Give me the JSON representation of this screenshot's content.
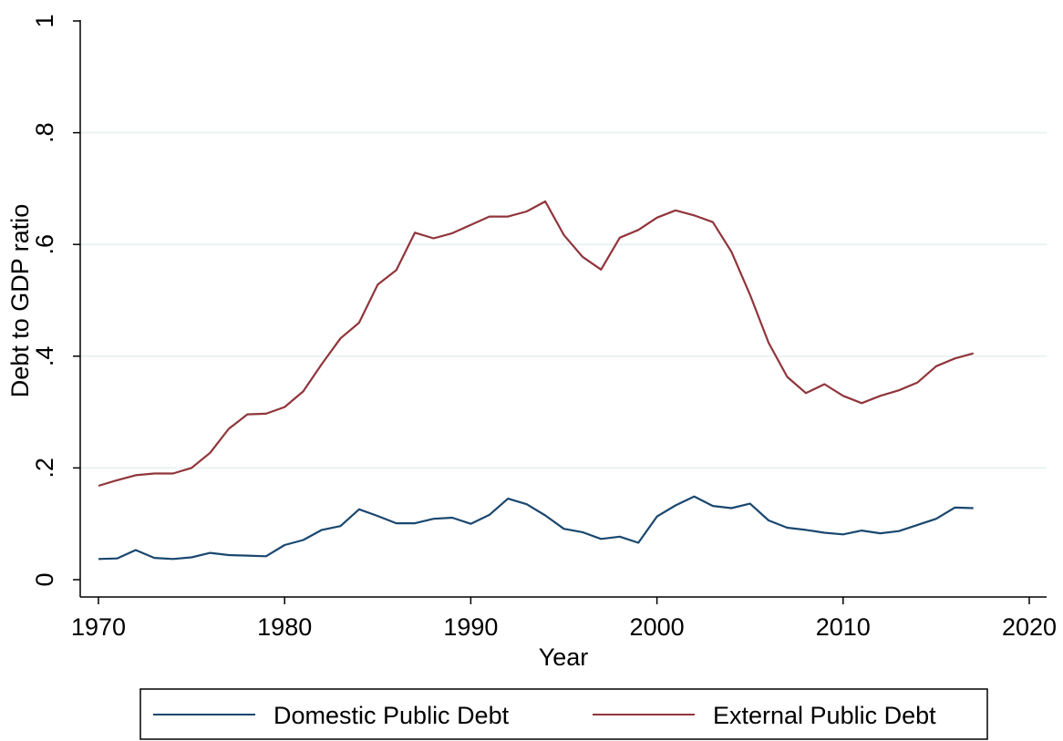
{
  "chart_data": {
    "type": "line",
    "xlabel": "Year",
    "ylabel": "Debt to GDP ratio",
    "xlim": [
      1970,
      2020
    ],
    "ylim": [
      0,
      1
    ],
    "xticks": [
      1970,
      1980,
      1990,
      2000,
      2010,
      2020
    ],
    "yticks": [
      0,
      0.2,
      0.4,
      0.6,
      0.8,
      1
    ],
    "ytick_labels": [
      "0",
      ".2",
      ".4",
      ".6",
      ".8",
      "1"
    ],
    "grid": "horizontal",
    "legend_position": "bottom",
    "x": [
      1970,
      1971,
      1972,
      1973,
      1974,
      1975,
      1976,
      1977,
      1978,
      1979,
      1980,
      1981,
      1982,
      1983,
      1984,
      1985,
      1986,
      1987,
      1988,
      1989,
      1990,
      1991,
      1992,
      1993,
      1994,
      1995,
      1996,
      1997,
      1998,
      1999,
      2000,
      2001,
      2002,
      2003,
      2004,
      2005,
      2006,
      2007,
      2008,
      2009,
      2010,
      2011,
      2012,
      2013,
      2014,
      2015,
      2016,
      2017
    ],
    "series": [
      {
        "name": "Domestic Public Debt",
        "color": "#1a476f",
        "values": [
          0.037,
          0.038,
          0.053,
          0.039,
          0.037,
          0.04,
          0.048,
          0.044,
          0.043,
          0.042,
          0.062,
          0.071,
          0.089,
          0.096,
          0.126,
          0.114,
          0.101,
          0.101,
          0.109,
          0.111,
          0.1,
          0.116,
          0.145,
          0.135,
          0.115,
          0.091,
          0.085,
          0.073,
          0.077,
          0.066,
          0.113,
          0.133,
          0.149,
          0.132,
          0.128,
          0.136,
          0.106,
          0.093,
          0.089,
          0.084,
          0.081,
          0.088,
          0.083,
          0.087,
          0.098,
          0.109,
          0.129,
          0.128
        ]
      },
      {
        "name": "External Public Debt",
        "color": "#90353b",
        "values": [
          0.168,
          0.178,
          0.187,
          0.19,
          0.19,
          0.2,
          0.227,
          0.27,
          0.296,
          0.297,
          0.309,
          0.337,
          0.386,
          0.432,
          0.46,
          0.528,
          0.554,
          0.621,
          0.611,
          0.62,
          0.635,
          0.65,
          0.65,
          0.659,
          0.677,
          0.617,
          0.578,
          0.555,
          0.612,
          0.626,
          0.648,
          0.661,
          0.652,
          0.64,
          0.587,
          0.51,
          0.424,
          0.363,
          0.334,
          0.35,
          0.329,
          0.316,
          0.329,
          0.339,
          0.353,
          0.382,
          0.396,
          0.405
        ]
      }
    ]
  }
}
